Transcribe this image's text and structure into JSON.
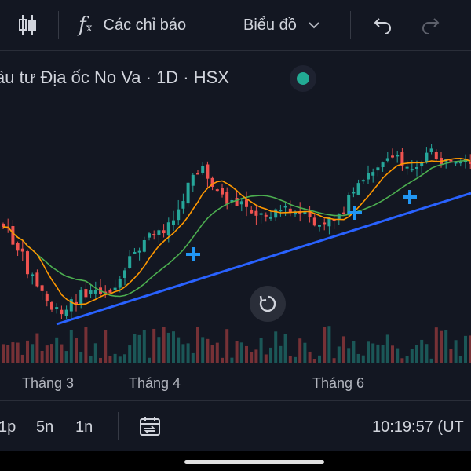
{
  "toolbar": {
    "indicators_label": "Các chỉ báo",
    "chart_type_label": "Biểu đồ"
  },
  "symbol": {
    "title": "ầu tư Địa ốc No Va · 1D · HSX"
  },
  "axis": {
    "months": [
      "Tháng 3",
      "Tháng 4",
      "Tháng 6"
    ]
  },
  "bottom": {
    "timeframes": [
      "1p",
      "5n",
      "1n"
    ],
    "clock": "10:19:57 (UT"
  },
  "colors": {
    "up": "#26a69a",
    "down": "#ef5350",
    "trendline": "#2962ff",
    "ma_fast": "#ff9800",
    "ma_slow": "#4caf50",
    "status": "#22ab94"
  },
  "chart_data": {
    "type": "candlestick",
    "title": "",
    "x_labels": [
      "Tháng 3",
      "Tháng 4",
      "Tháng 6"
    ],
    "overlays": [
      "orange moving average",
      "green moving average",
      "blue trendline"
    ],
    "volume_pane": true
  }
}
